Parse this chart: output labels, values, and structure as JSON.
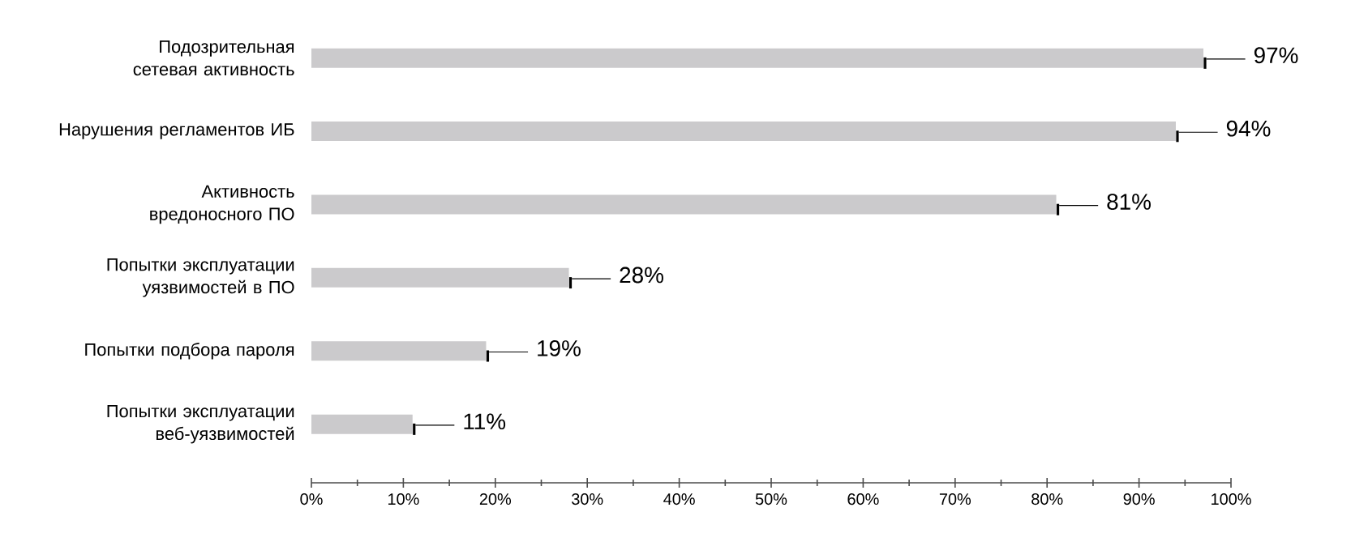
{
  "chart_data": {
    "type": "bar",
    "orientation": "horizontal",
    "categories": [
      "Подозрительная сетевая активность",
      "Нарушения регламентов ИБ",
      "Активность вредоносного ПО",
      "Попытки эксплуатации уязвимостей в ПО",
      "Попытки подбора пароля",
      "Попытки эксплуатации веб-уязвимостей"
    ],
    "values": [
      97,
      94,
      81,
      28,
      19,
      11
    ],
    "value_labels": [
      "97%",
      "94%",
      "81%",
      "28%",
      "19%",
      "11%"
    ],
    "color": "#cbcacc",
    "xlim": [
      0,
      100
    ],
    "xticks": [
      {
        "value": 0,
        "label": "0%"
      },
      {
        "value": 5,
        "label": null
      },
      {
        "value": 10,
        "label": "10%"
      },
      {
        "value": 15,
        "label": null
      },
      {
        "value": 20,
        "label": "20%"
      },
      {
        "value": 25,
        "label": null
      },
      {
        "value": 30,
        "label": "30%"
      },
      {
        "value": 35,
        "label": null
      },
      {
        "value": 40,
        "label": "40%"
      },
      {
        "value": 45,
        "label": null
      },
      {
        "value": 50,
        "label": "50%"
      },
      {
        "value": 55,
        "label": null
      },
      {
        "value": 60,
        "label": "60%"
      },
      {
        "value": 65,
        "label": null
      },
      {
        "value": 70,
        "label": "70%"
      },
      {
        "value": 75,
        "label": null
      },
      {
        "value": 80,
        "label": "80%"
      },
      {
        "value": 85,
        "label": null
      },
      {
        "value": 90,
        "label": "90%"
      },
      {
        "value": 95,
        "label": null
      },
      {
        "value": 100,
        "label": "100%"
      }
    ],
    "grid": false
  }
}
